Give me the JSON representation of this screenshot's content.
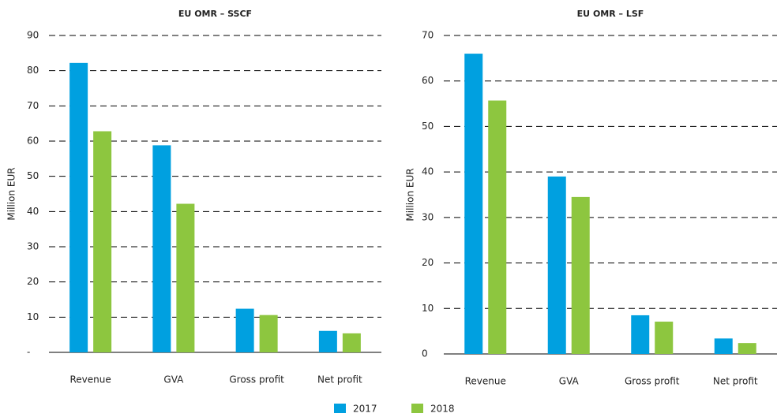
{
  "chart_data": [
    {
      "type": "bar",
      "title": "EU OMR – SSCF",
      "y_label": "Million EUR",
      "categories": [
        "Revenue",
        "GVA",
        "Gross profit",
        "Net profit"
      ],
      "series": [
        {
          "name": "2017",
          "color": "#00a0e0",
          "values": [
            82.2,
            58.8,
            12.4,
            6.1
          ]
        },
        {
          "name": "2018",
          "color": "#8dc63f",
          "values": [
            62.8,
            42.2,
            10.6,
            5.4
          ]
        }
      ],
      "ylim": [
        0,
        90
      ],
      "yticks": [
        {
          "value": 0,
          "label": "-"
        },
        10,
        20,
        30,
        40,
        50,
        60,
        70,
        80,
        90
      ],
      "grid": true
    },
    {
      "type": "bar",
      "title": "EU OMR – LSF",
      "y_label": "Million EUR",
      "categories": [
        "Revenue",
        "GVA",
        "Gross profit",
        "Net profit"
      ],
      "series": [
        {
          "name": "2017",
          "color": "#00a0e0",
          "values": [
            66.0,
            39.0,
            8.5,
            3.4
          ]
        },
        {
          "name": "2018",
          "color": "#8dc63f",
          "values": [
            55.7,
            34.5,
            7.1,
            2.4
          ]
        }
      ],
      "ylim": [
        0,
        70
      ],
      "yticks": [
        0,
        10,
        20,
        30,
        40,
        50,
        60,
        70
      ],
      "grid": true
    }
  ]
}
